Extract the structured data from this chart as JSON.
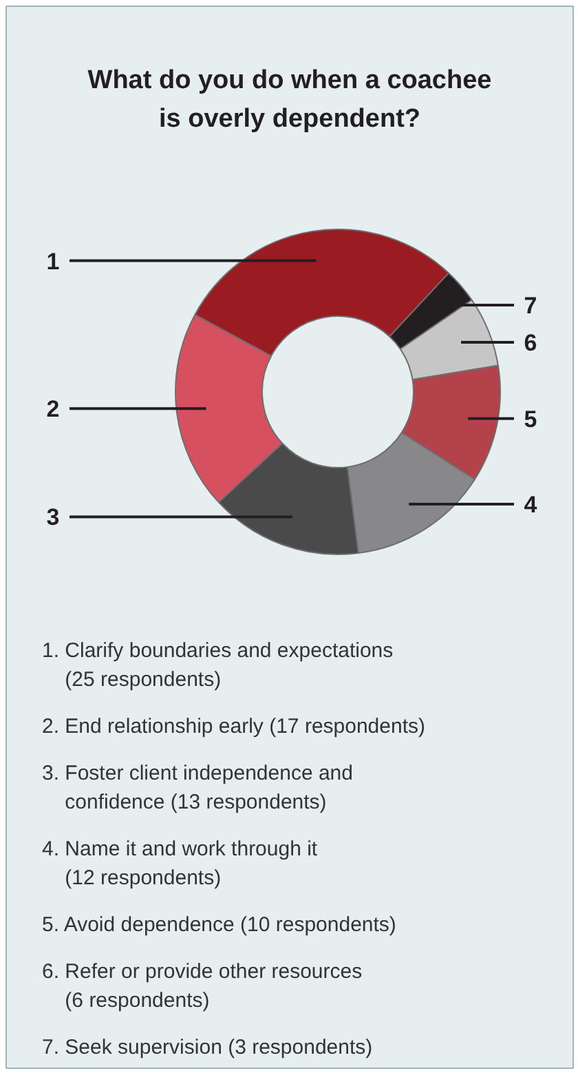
{
  "chart_data": {
    "type": "donut",
    "title": "What do you do when a coachee is overly dependent?",
    "categories": [
      "1",
      "2",
      "3",
      "4",
      "5",
      "6",
      "7"
    ],
    "values": [
      25,
      17,
      13,
      12,
      10,
      6,
      3
    ],
    "colors": [
      "#9b1b22",
      "#d6505f",
      "#4a4a4b",
      "#88888b",
      "#b4424b",
      "#c6c6c7",
      "#231f20"
    ],
    "annotations": [
      "1. Clarify boundaries and expectations (25 respondents)",
      "2. End relationship early (17 respondents)",
      "3. Foster client independence and confidence (13 respondents)",
      "4. Name it and work through it (12 respondents)",
      "5. Avoid dependence (10 respondents)",
      "6. Refer or provide other resources (6 respondents)",
      "7. Seek supervision (3 respondents)"
    ]
  }
}
